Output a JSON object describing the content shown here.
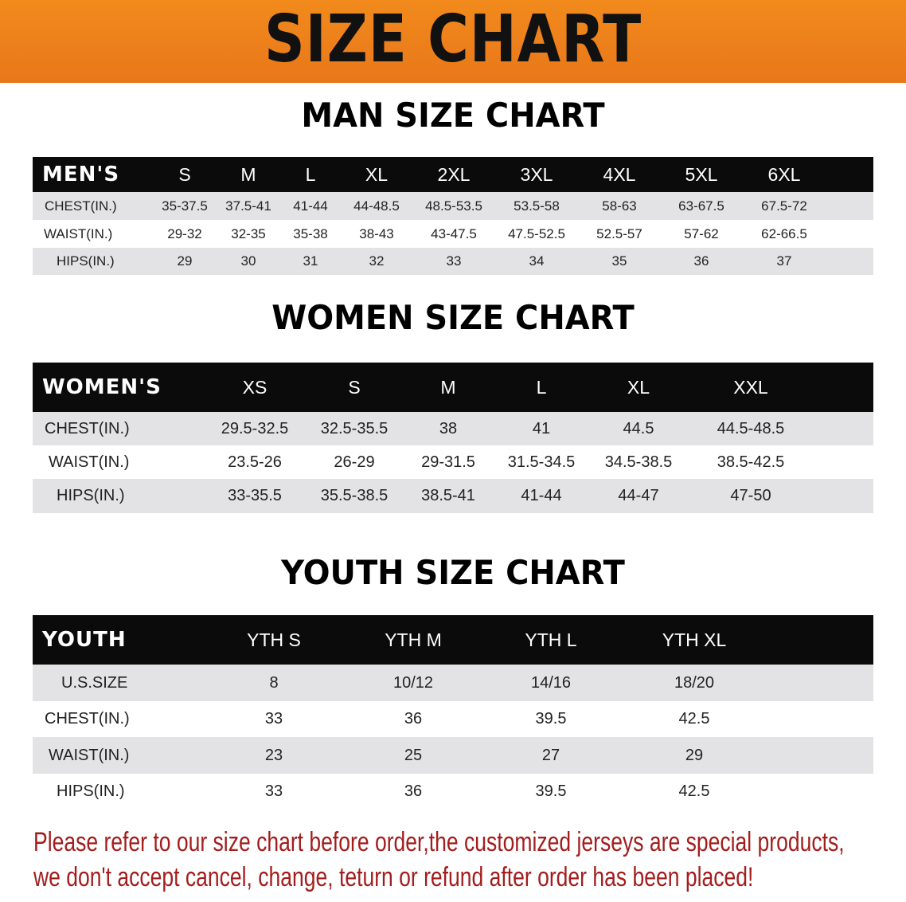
{
  "banner": {
    "title": "SIZE CHART",
    "color": "#f08a1e"
  },
  "men": {
    "title": "MAN SIZE CHART",
    "header": [
      "MEN'S",
      "S",
      "M",
      "L",
      "XL",
      "2XL",
      "3XL",
      "4XL",
      "5XL",
      "6XL"
    ],
    "rows": [
      [
        "CHEST(IN.)",
        "35-37.5",
        "37.5-41",
        "41-44",
        "44-48.5",
        "48.5-53.5",
        "53.5-58",
        "58-63",
        "63-67.5",
        "67.5-72"
      ],
      [
        "WAIST(IN.)",
        "29-32",
        "32-35",
        "35-38",
        "38-43",
        "43-47.5",
        "47.5-52.5",
        "52.5-57",
        "57-62",
        "62-66.5"
      ],
      [
        "HIPS(IN.)",
        "29",
        "30",
        "31",
        "32",
        "33",
        "34",
        "35",
        "36",
        "37"
      ]
    ]
  },
  "women": {
    "title": "WOMEN SIZE CHART",
    "header": [
      "WOMEN'S",
      "XS",
      "S",
      "M",
      "L",
      "XL",
      "XXL"
    ],
    "rows": [
      [
        "CHEST(IN.)",
        "29.5-32.5",
        "32.5-35.5",
        "38",
        "41",
        "44.5",
        "44.5-48.5"
      ],
      [
        "WAIST(IN.)",
        "23.5-26",
        "26-29",
        "29-31.5",
        "31.5-34.5",
        "34.5-38.5",
        "38.5-42.5"
      ],
      [
        "HIPS(IN.)",
        "33-35.5",
        "35.5-38.5",
        "38.5-41",
        "41-44",
        "44-47",
        "47-50"
      ]
    ]
  },
  "youth": {
    "title": "YOUTH SIZE CHART",
    "header": [
      "YOUTH",
      "YTH S",
      "YTH M",
      "YTH L",
      "YTH XL"
    ],
    "rows": [
      [
        "U.S.SIZE",
        "8",
        "10/12",
        "14/16",
        "18/20"
      ],
      [
        "CHEST(IN.)",
        "33",
        "36",
        "39.5",
        "42.5"
      ],
      [
        "WAIST(IN.)",
        "23",
        "25",
        "27",
        "29"
      ],
      [
        "HIPS(IN.)",
        "33",
        "36",
        "39.5",
        "42.5"
      ]
    ]
  },
  "note": {
    "line1": "Please refer to our size chart before order,the customized jerseys are special products,",
    "line2": "we don't accept cancel, change, teturn or refund after order has been placed!",
    "color": "#a31d1d"
  }
}
